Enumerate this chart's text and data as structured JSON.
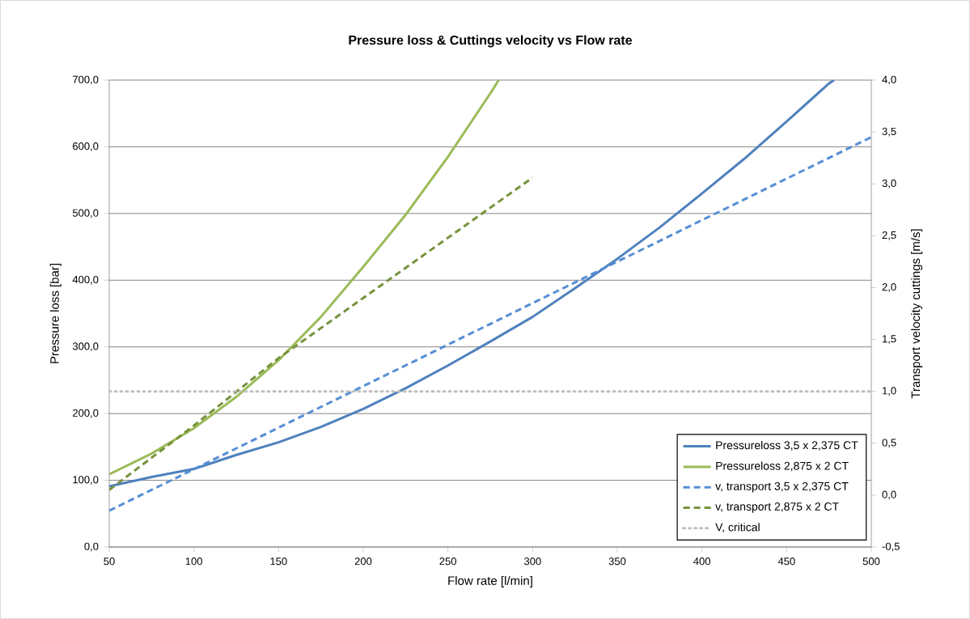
{
  "chart_data": {
    "type": "line",
    "title": "Pressure loss & Cuttings velocity vs Flow rate",
    "xlabel": "Flow rate [l/min]",
    "ylabel": "Pressure loss [bar]",
    "y2label": "Transport velocity cuttings [m/s]",
    "series": [
      {
        "name": "Pressureloss 3,5 x 2,375 CT",
        "color": "#4f81bd",
        "line_style": "solid",
        "x": [
          50,
          75,
          100,
          125,
          150,
          175,
          200,
          225,
          250,
          275,
          300,
          325,
          350,
          375,
          400,
          425,
          450,
          475,
          478
        ],
        "values": [
          91,
          105,
          117,
          138,
          157,
          180,
          207,
          238,
          272,
          308,
          345,
          388,
          432,
          479,
          530,
          582,
          638,
          695,
          700
        ]
      },
      {
        "name": "Pressureloss 2,875 x 2 CT",
        "color": "#9bbb59",
        "line_style": "solid",
        "x": [
          50,
          75,
          100,
          125,
          150,
          175,
          200,
          225,
          250,
          275,
          280
        ],
        "values": [
          109,
          140,
          178,
          225,
          280,
          345,
          420,
          498,
          585,
          680,
          700
        ]
      },
      {
        "name": "v, transport 3,5 x 2,375 CT",
        "color": "#558ed5",
        "line_style": "dashed",
        "axis": "y2",
        "x": [
          50,
          100,
          150,
          200,
          250,
          300,
          350,
          400,
          450,
          500
        ],
        "values": [
          -0.15,
          0.25,
          0.65,
          1.05,
          1.45,
          1.85,
          2.25,
          2.65,
          3.05,
          3.45
        ]
      },
      {
        "name": "v, transport 2,875 x 2 CT",
        "color": "#77933c",
        "line_style": "dashed",
        "axis": "y2",
        "x": [
          50,
          100,
          150,
          200,
          250,
          300
        ],
        "values": [
          0.05,
          0.67,
          1.32,
          1.9,
          2.48,
          3.06
        ]
      }
    ],
    "ref_lines": [
      {
        "axis": "y2",
        "value": 1.0,
        "label": "V, critical",
        "color": "#bfbfbf",
        "line_style": "dotted"
      }
    ],
    "xlim": [
      50,
      500
    ],
    "xticks": [
      50,
      100,
      150,
      200,
      250,
      300,
      350,
      400,
      450,
      500
    ],
    "ylim": [
      0,
      700
    ],
    "yticks": [
      {
        "value": 0,
        "label": "0,0"
      },
      {
        "value": 100,
        "label": "100,0"
      },
      {
        "value": 200,
        "label": "200,0"
      },
      {
        "value": 300,
        "label": "300,0"
      },
      {
        "value": 400,
        "label": "400,0"
      },
      {
        "value": 500,
        "label": "500,0"
      },
      {
        "value": 600,
        "label": "600,0"
      },
      {
        "value": 700,
        "label": "700,0"
      }
    ],
    "y2lim": [
      -0.5,
      4.0
    ],
    "y2ticks": [
      {
        "value": -0.5,
        "label": "-0,5"
      },
      {
        "value": 0,
        "label": "0,0"
      },
      {
        "value": 0.5,
        "label": "0,5"
      },
      {
        "value": 1.0,
        "label": "1,0"
      },
      {
        "value": 1.5,
        "label": "1,5"
      },
      {
        "value": 2.0,
        "label": "2,0"
      },
      {
        "value": 2.5,
        "label": "2,5"
      },
      {
        "value": 3.0,
        "label": "3,0"
      },
      {
        "value": 3.5,
        "label": "3,5"
      },
      {
        "value": 4.0,
        "label": "4,0"
      }
    ],
    "grid": "y",
    "legend": "bottom right"
  }
}
